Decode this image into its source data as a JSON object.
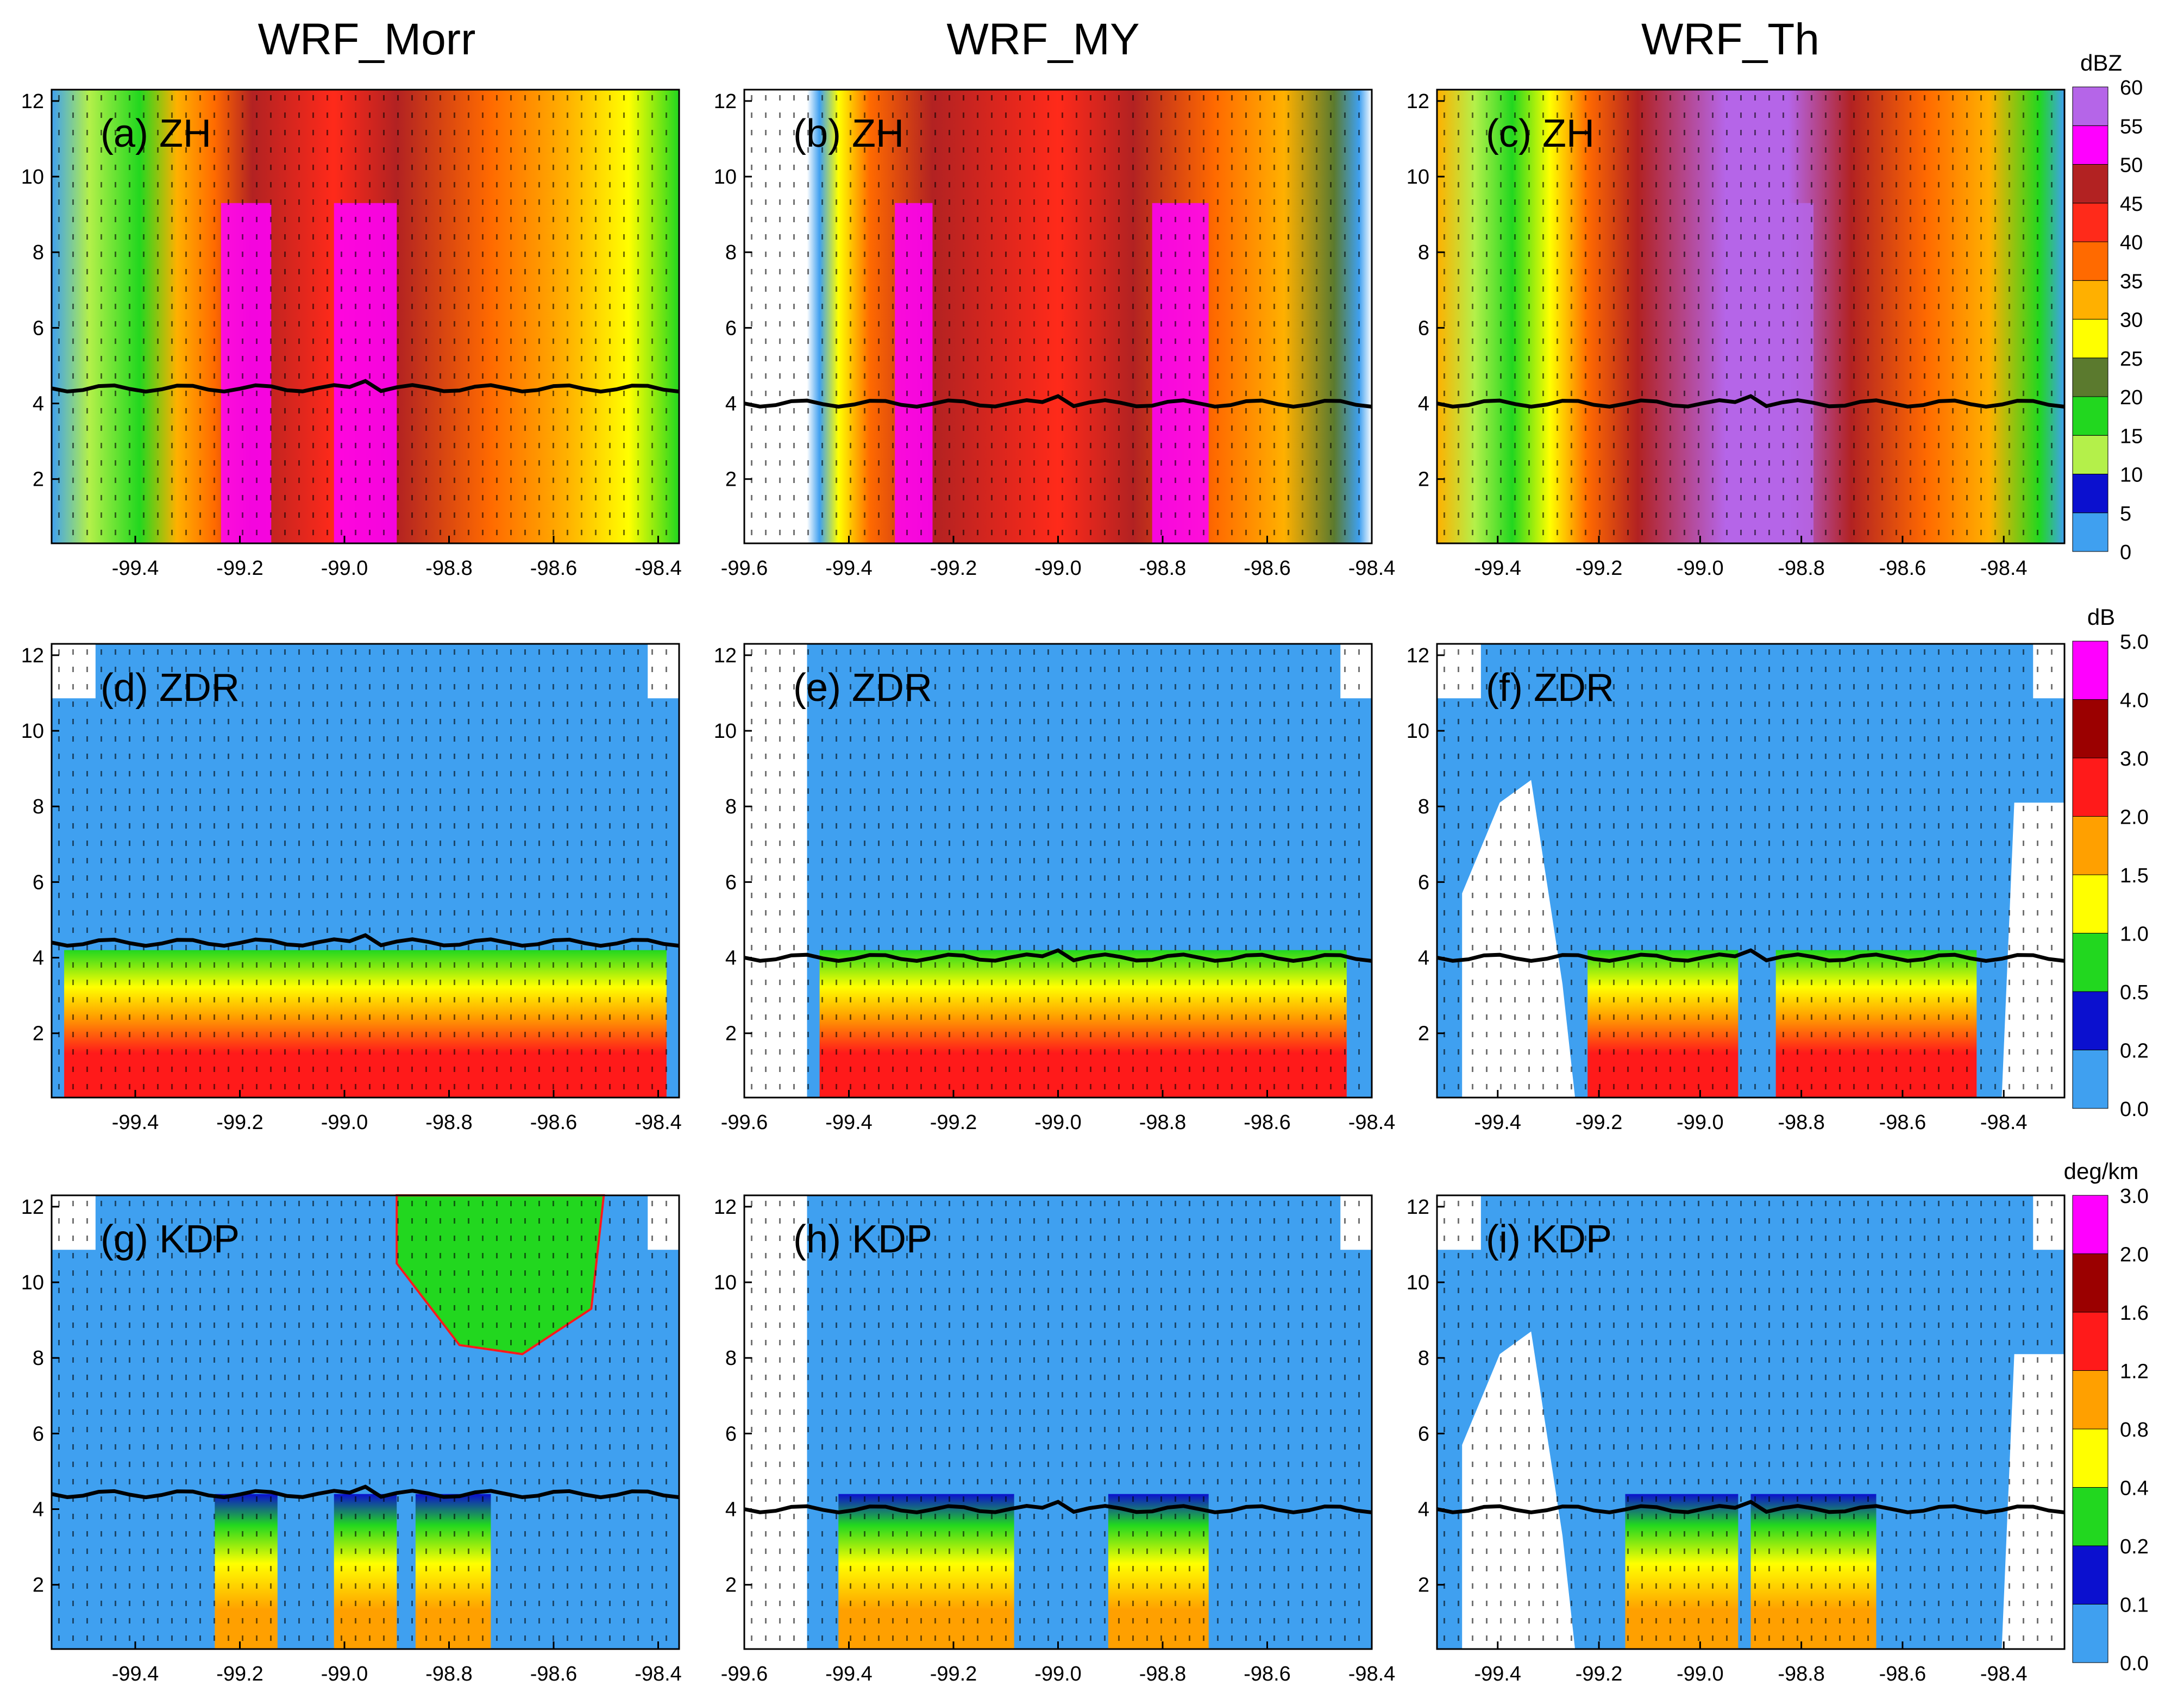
{
  "chart_data": {
    "type": "heatmap",
    "columns": [
      "WRF_Morr",
      "WRF_MY",
      "WRF_Th"
    ],
    "panels": [
      {
        "id": "a",
        "label": "(a) ZH",
        "variable": "ZH",
        "scheme": "WRF_Morr",
        "xticks": [
          "-99.4",
          "-99.2",
          "-99.0",
          "-98.8",
          "-98.6",
          "-98.4"
        ],
        "xlim": [
          -99.56,
          -98.36
        ]
      },
      {
        "id": "b",
        "label": "(b) ZH",
        "variable": "ZH",
        "scheme": "WRF_MY",
        "xticks": [
          "-99.6",
          "-99.4",
          "-99.2",
          "-99.0",
          "-98.8",
          "-98.6",
          "-98.4"
        ],
        "xlim": [
          -99.6,
          -98.4
        ]
      },
      {
        "id": "c",
        "label": "(c) ZH",
        "variable": "ZH",
        "scheme": "WRF_Th",
        "xticks": [
          "-99.4",
          "-99.2",
          "-99.0",
          "-98.8",
          "-98.6",
          "-98.4"
        ],
        "xlim": [
          -99.52,
          -98.28
        ]
      },
      {
        "id": "d",
        "label": "(d) ZDR",
        "variable": "ZDR",
        "scheme": "WRF_Morr",
        "xticks": [
          "-99.4",
          "-99.2",
          "-99.0",
          "-98.8",
          "-98.6",
          "-98.4"
        ],
        "xlim": [
          -99.56,
          -98.36
        ]
      },
      {
        "id": "e",
        "label": "(e) ZDR",
        "variable": "ZDR",
        "scheme": "WRF_MY",
        "xticks": [
          "-99.6",
          "-99.4",
          "-99.2",
          "-99.0",
          "-98.8",
          "-98.6",
          "-98.4"
        ],
        "xlim": [
          -99.6,
          -98.4
        ]
      },
      {
        "id": "f",
        "label": "(f) ZDR",
        "variable": "ZDR",
        "scheme": "WRF_Th",
        "xticks": [
          "-99.4",
          "-99.2",
          "-99.0",
          "-98.8",
          "-98.6",
          "-98.4"
        ],
        "xlim": [
          -99.52,
          -98.28
        ]
      },
      {
        "id": "g",
        "label": "(g) KDP",
        "variable": "KDP",
        "scheme": "WRF_Morr",
        "xticks": [
          "-99.4",
          "-99.2",
          "-99.0",
          "-98.8",
          "-98.6",
          "-98.4"
        ],
        "xlim": [
          -99.56,
          -98.36
        ]
      },
      {
        "id": "h",
        "label": "(h) KDP",
        "variable": "KDP",
        "scheme": "WRF_MY",
        "xticks": [
          "-99.6",
          "-99.4",
          "-99.2",
          "-99.0",
          "-98.8",
          "-98.6",
          "-98.4"
        ],
        "xlim": [
          -99.6,
          -98.4
        ]
      },
      {
        "id": "i",
        "label": "(i) KDP",
        "variable": "KDP",
        "scheme": "WRF_Th",
        "xticks": [
          "-99.4",
          "-99.2",
          "-99.0",
          "-98.8",
          "-98.6",
          "-98.4"
        ],
        "xlim": [
          -99.52,
          -98.28
        ]
      }
    ],
    "yticks": [
      "2",
      "4",
      "6",
      "8",
      "10",
      "12"
    ],
    "ylim": [
      0.3,
      12.3
    ],
    "melting_level_km": [
      4.4,
      4.0,
      4.0
    ],
    "colorbars": [
      {
        "variable": "ZH",
        "unit": "dBZ",
        "levels": [
          "0",
          "5",
          "10",
          "15",
          "20",
          "25",
          "30",
          "35",
          "40",
          "45",
          "50",
          "55",
          "60"
        ],
        "colors": [
          "#3fa0f0",
          "#0b10cf",
          "#b4f04a",
          "#22d71f",
          "#5b7a2e",
          "#ffff00",
          "#ffb000",
          "#ff6a00",
          "#ff2a1a",
          "#b22222",
          "#ff00ff",
          "#b565e8"
        ]
      },
      {
        "variable": "ZDR",
        "unit": "dB",
        "levels": [
          "0.0",
          "0.2",
          "0.5",
          "1.0",
          "1.5",
          "2.0",
          "3.0",
          "4.0",
          "5.0"
        ],
        "colors": [
          "#3fa0f0",
          "#0b10cf",
          "#22d71f",
          "#ffff00",
          "#ffa000",
          "#ff1a1a",
          "#9b0000",
          "#ff00ff"
        ]
      },
      {
        "variable": "KDP",
        "unit": "deg/km",
        "levels": [
          "0.0",
          "0.1",
          "0.2",
          "0.4",
          "0.8",
          "1.2",
          "1.6",
          "2.0",
          "3.0"
        ],
        "colors": [
          "#3fa0f0",
          "#0b10cf",
          "#22d71f",
          "#ffff00",
          "#ffa000",
          "#ff1a1a",
          "#9b0000",
          "#ff00ff"
        ]
      }
    ],
    "grid": false
  }
}
